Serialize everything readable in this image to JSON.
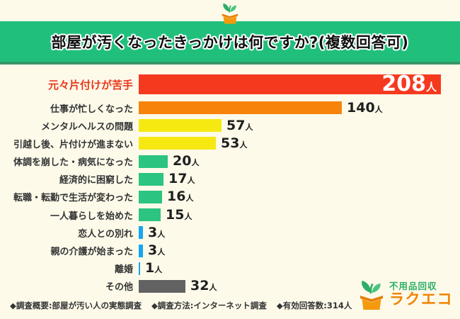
{
  "page": {
    "background_color": "#FDFAEA"
  },
  "header": {
    "title": "部屋が汚くなったきっかけは何ですか?(複数回答可)",
    "banner_color": "#20C07C",
    "banner_underline_color": "#379469"
  },
  "chart_data": {
    "type": "bar",
    "orientation": "horizontal",
    "value_unit": "人",
    "max_value": 208,
    "grid": false,
    "legend": "none",
    "categories": [
      "元々片付けが苦手",
      "仕事が忙しくなった",
      "メンタルヘルスの問題",
      "引越し後、片付けが進まない",
      "体調を崩した・病気になった",
      "経済的に困窮した",
      "転職・転勤で生活が変わった",
      "一人暮らしを始めた",
      "恋人との別れ",
      "親の介護が始まった",
      "離婚",
      "その他"
    ],
    "values": [
      208,
      140,
      57,
      53,
      20,
      17,
      16,
      15,
      3,
      3,
      1,
      32
    ],
    "bar_colors": [
      "#F5391F",
      "#F8830A",
      "#F6E912",
      "#F6E912",
      "#2BC480",
      "#2BC480",
      "#2BC480",
      "#2BC480",
      "#15A5F2",
      "#15A5F2",
      "#15A5F2",
      "#626262"
    ],
    "highlight_category_index": 0,
    "highlight_label_color": "#E8391C"
  },
  "footer": {
    "notes": [
      "◆調査概要:部屋が汚い人の実態調査",
      "◆調査方法:インターネット調査",
      "◆有効回答数:314人"
    ]
  },
  "logo": {
    "service_name": "不用品回収",
    "brand_name": "ラクエコ",
    "service_color": "#2BAE66",
    "brand_color": "#F08300"
  }
}
